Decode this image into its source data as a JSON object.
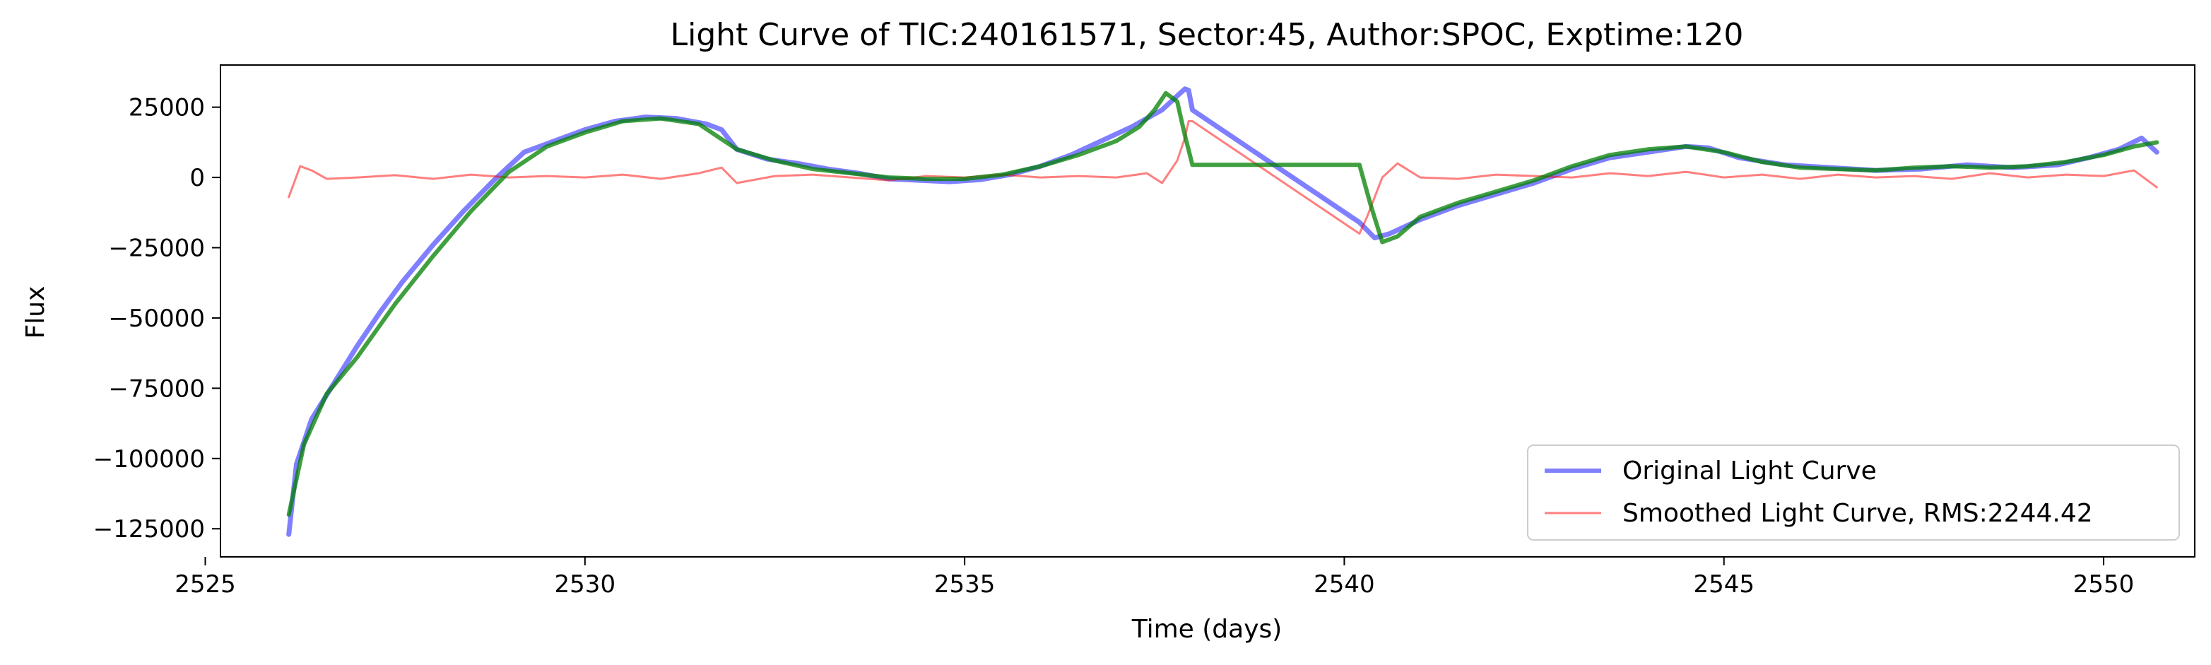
{
  "chart_data": {
    "type": "line",
    "title": "Light Curve of TIC:240161571, Sector:45, Author:SPOC, Exptime:120",
    "xlabel": "Time (days)",
    "ylabel": "Flux",
    "xlim": [
      2525.2,
      2551.2
    ],
    "ylim": [
      -135000,
      40000
    ],
    "xticks": [
      2525,
      2530,
      2535,
      2540,
      2545,
      2550
    ],
    "xtick_labels": [
      "2525",
      "2530",
      "2535",
      "2540",
      "2545",
      "2550"
    ],
    "yticks": [
      25000,
      0,
      -25000,
      -50000,
      -75000,
      -100000,
      -125000
    ],
    "ytick_labels": [
      "25000",
      "0",
      "−25000",
      "−50000",
      "−75000",
      "−100000",
      "−125000"
    ],
    "grid": false,
    "legend_position": "lower-right",
    "colors": {
      "original": "#0000ff",
      "smoothed_trend": "#008000",
      "residual": "#ff0000"
    },
    "series": [
      {
        "name": "Original Light Curve",
        "x": [
          2526.1,
          2526.2,
          2526.4,
          2526.7,
          2527.0,
          2527.3,
          2527.6,
          2528.0,
          2528.4,
          2528.8,
          2529.2,
          2529.6,
          2530.0,
          2530.4,
          2530.8,
          2531.2,
          2531.6,
          2531.8,
          2532.0,
          2532.4,
          2532.8,
          2533.2,
          2533.6,
          2534.0,
          2534.4,
          2534.8,
          2535.2,
          2535.6,
          2536.0,
          2536.4,
          2536.8,
          2537.2,
          2537.6,
          2537.8,
          2537.9,
          2537.95,
          2538.0,
          2540.2,
          2540.4,
          2540.6,
          2541.0,
          2541.5,
          2542.0,
          2542.5,
          2543.0,
          2543.5,
          2544.0,
          2544.5,
          2544.8,
          2545.2,
          2545.8,
          2546.4,
          2547.0,
          2547.6,
          2548.2,
          2548.8,
          2549.4,
          2549.8,
          2550.2,
          2550.5,
          2550.7
        ],
        "y": [
          -127000,
          -102000,
          -86000,
          -73000,
          -60000,
          -48000,
          -37000,
          -24000,
          -12000,
          -1000,
          9000,
          13000,
          17000,
          20000,
          21500,
          21000,
          19000,
          17000,
          10000,
          6500,
          5000,
          3000,
          1500,
          -500,
          -1000,
          -1500,
          -800,
          1000,
          4000,
          8000,
          13000,
          18000,
          24000,
          29000,
          31500,
          31000,
          24000,
          -16000,
          -21500,
          -20000,
          -15000,
          -10000,
          -6000,
          -2000,
          3000,
          7000,
          9000,
          11000,
          10500,
          7000,
          4500,
          3500,
          2500,
          3000,
          4500,
          3500,
          4500,
          7000,
          10000,
          14000,
          9000
        ]
      },
      {
        "name": "Smoothed Light Curve, RMS:2244.42",
        "x": [
          2526.1,
          2526.25,
          2526.4,
          2526.6,
          2527.0,
          2527.5,
          2528.0,
          2528.5,
          2529.0,
          2529.5,
          2530.0,
          2530.5,
          2531.0,
          2531.5,
          2531.8,
          2532.0,
          2532.5,
          2533.0,
          2533.5,
          2534.0,
          2534.5,
          2535.0,
          2535.5,
          2536.0,
          2536.5,
          2537.0,
          2537.4,
          2537.6,
          2537.8,
          2537.9,
          2537.95,
          2538.0,
          2540.2,
          2540.3,
          2540.5,
          2540.7,
          2541.0,
          2541.5,
          2542.0,
          2542.5,
          2543.0,
          2543.5,
          2544.0,
          2544.5,
          2545.0,
          2545.5,
          2546.0,
          2546.5,
          2547.0,
          2547.5,
          2548.0,
          2548.5,
          2549.0,
          2549.5,
          2550.0,
          2550.4,
          2550.7
        ],
        "y": [
          -7000,
          4000,
          2500,
          -500,
          0,
          800,
          -500,
          1000,
          0,
          500,
          0,
          1000,
          -500,
          1500,
          3500,
          -2000,
          500,
          1000,
          0,
          -1000,
          500,
          0,
          1000,
          0,
          500,
          0,
          1500,
          -2000,
          6000,
          14000,
          20000,
          20000,
          -20000,
          -14000,
          0,
          5000,
          0,
          -500,
          1000,
          500,
          0,
          1500,
          500,
          2000,
          0,
          1000,
          -500,
          1000,
          0,
          500,
          -500,
          1500,
          0,
          1000,
          500,
          2500,
          -3500
        ]
      },
      {
        "x": [
          2526.1,
          2526.3,
          2526.6,
          2527.0,
          2527.5,
          2528.0,
          2528.5,
          2529.0,
          2529.5,
          2530.0,
          2530.5,
          2531.0,
          2531.5,
          2532.0,
          2532.5,
          2533.0,
          2533.5,
          2534.0,
          2534.5,
          2535.0,
          2535.5,
          2536.0,
          2536.5,
          2537.0,
          2537.3,
          2537.5,
          2537.65,
          2537.8,
          2537.9,
          2538.0,
          2540.2,
          2540.35,
          2540.5,
          2540.7,
          2541.0,
          2541.5,
          2542.0,
          2542.5,
          2543.0,
          2543.5,
          2544.0,
          2544.5,
          2545.0,
          2545.5,
          2546.0,
          2546.5,
          2547.0,
          2547.5,
          2548.0,
          2548.5,
          2549.0,
          2549.5,
          2550.0,
          2550.4,
          2550.7
        ],
        "y": [
          -120000,
          -95000,
          -77000,
          -64000,
          -45000,
          -28000,
          -12000,
          2000,
          11000,
          16000,
          20000,
          21000,
          19000,
          10000,
          6000,
          3000,
          1500,
          0,
          -500,
          -500,
          1000,
          4000,
          8000,
          13000,
          18000,
          24000,
          30000,
          27000,
          15000,
          4500,
          4500,
          -10000,
          -23000,
          -21000,
          -14000,
          -9000,
          -5000,
          -1000,
          4000,
          8000,
          10000,
          11000,
          9000,
          5500,
          3500,
          3000,
          2500,
          3500,
          4000,
          3500,
          4000,
          5500,
          8000,
          11000,
          12500
        ]
      }
    ],
    "legend": [
      "Original Light Curve",
      "Smoothed Light Curve, RMS:2244.42"
    ]
  }
}
